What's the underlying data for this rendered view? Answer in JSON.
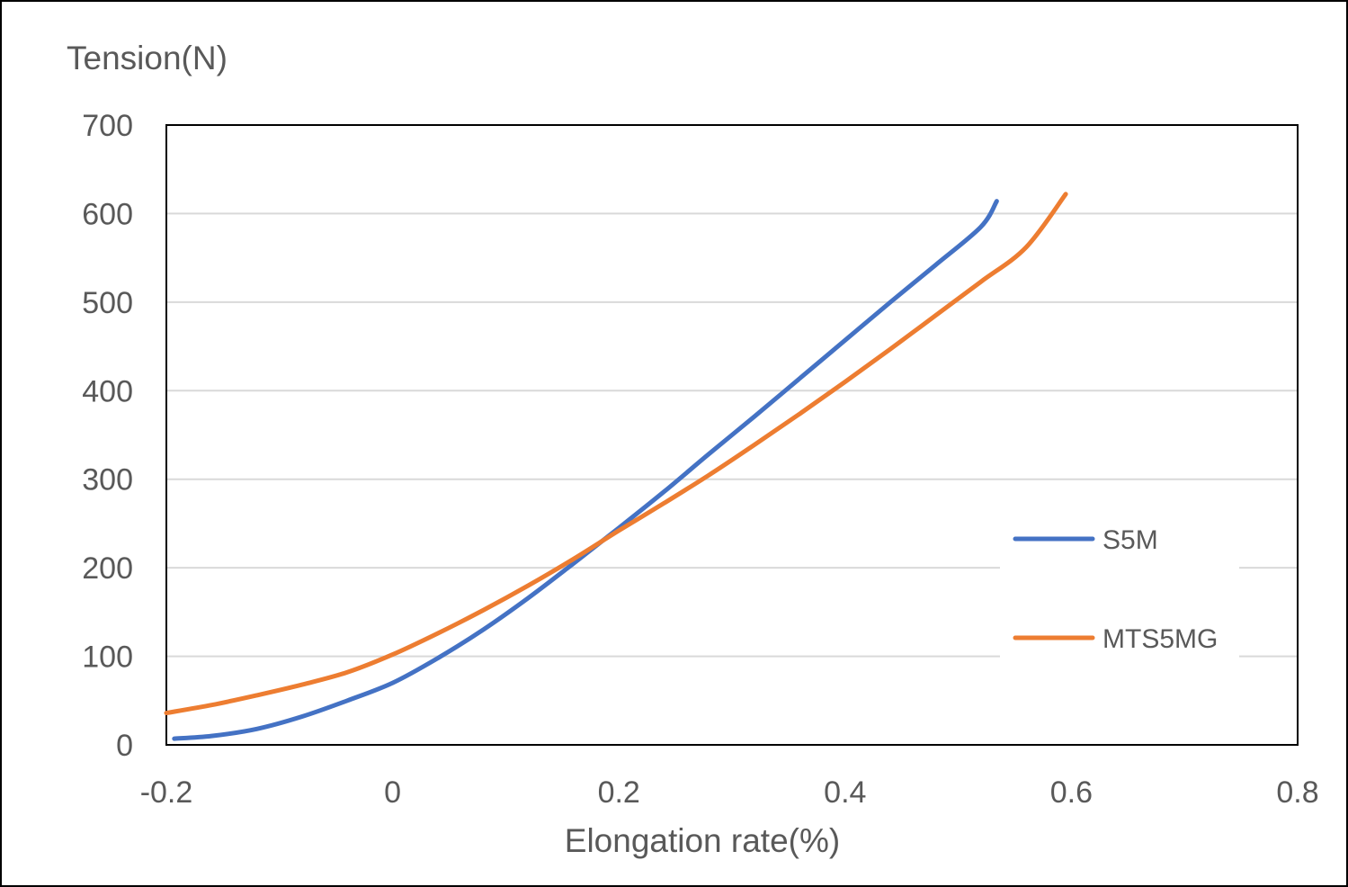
{
  "chart_data": {
    "type": "line",
    "title": "",
    "xlabel": "Elongation rate(%)",
    "ylabel": "Tension(N)",
    "xlim": [
      -0.2,
      0.8
    ],
    "ylim": [
      0,
      700
    ],
    "xticks": [
      -0.2,
      0,
      0.2,
      0.4,
      0.6,
      0.8
    ],
    "xtick_labels": [
      "-0.2",
      "0",
      "0.2",
      "0.4",
      "0.6",
      "0.8"
    ],
    "yticks": [
      0,
      100,
      200,
      300,
      400,
      500,
      600,
      700
    ],
    "ytick_labels": [
      "0",
      "100",
      "200",
      "300",
      "400",
      "500",
      "600",
      "700"
    ],
    "grid": "horizontal",
    "legend_position": "right",
    "series": [
      {
        "name": "S5M",
        "color": "#4472C4",
        "x": [
          -0.193,
          -0.16,
          -0.12,
          -0.08,
          -0.04,
          0.0,
          0.04,
          0.08,
          0.12,
          0.16,
          0.2,
          0.24,
          0.28,
          0.32,
          0.36,
          0.4,
          0.44,
          0.48,
          0.52,
          0.534
        ],
        "y": [
          7,
          10,
          18,
          32,
          50,
          70,
          98,
          130,
          166,
          205,
          245,
          286,
          329,
          371,
          414,
          457,
          500,
          542,
          585,
          614
        ]
      },
      {
        "name": "MTS5MG",
        "color": "#ED7D31",
        "x": [
          -0.2,
          -0.16,
          -0.12,
          -0.08,
          -0.04,
          0.0,
          0.04,
          0.08,
          0.12,
          0.16,
          0.2,
          0.24,
          0.28,
          0.32,
          0.36,
          0.4,
          0.44,
          0.48,
          0.52,
          0.56,
          0.595
        ],
        "y": [
          36,
          45,
          56,
          68,
          82,
          102,
          126,
          152,
          180,
          210,
          242,
          273,
          305,
          339,
          374,
          410,
          447,
          485,
          523,
          562,
          622
        ]
      }
    ]
  }
}
